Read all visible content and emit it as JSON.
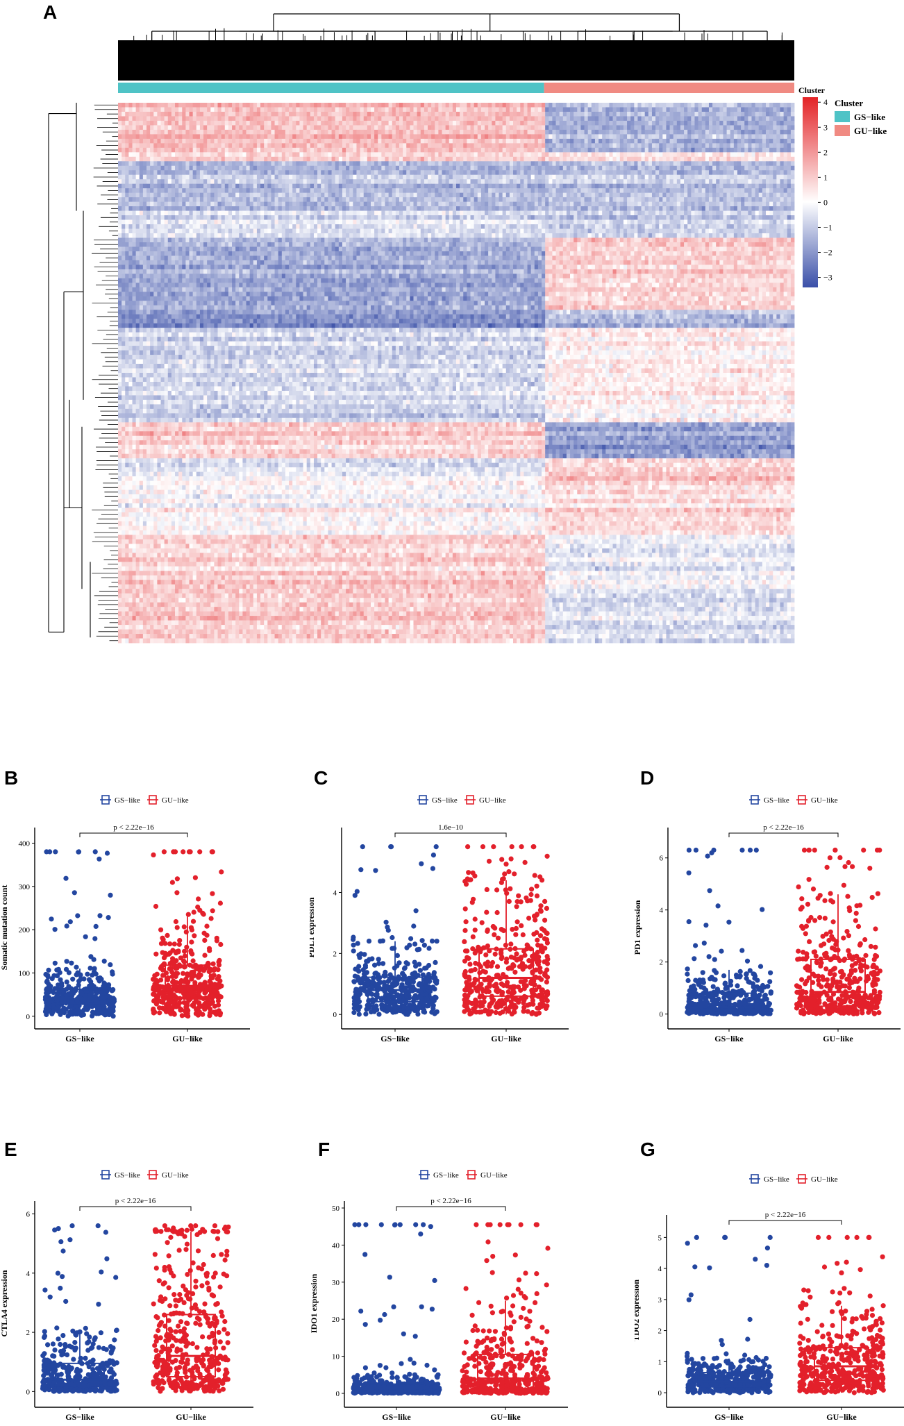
{
  "panels": {
    "a": "A",
    "b": "B",
    "c": "C",
    "d": "D",
    "e": "E",
    "f": "F",
    "g": "G"
  },
  "colors": {
    "gs": "#2346A0",
    "gu": "#E3202B",
    "heat_low": "#3A4FA8",
    "heat_mid": "#FFFFFF",
    "heat_high": "#E32326",
    "cluster_gs": "#4FC3C6",
    "cluster_gu": "#F08A82"
  },
  "chart_data": [
    {
      "type": "heatmap",
      "panel": "A",
      "annotation_label": "Cluster",
      "legend": {
        "title": "Cluster",
        "entries": [
          "GS−like",
          "GU−like"
        ],
        "colorbar_ticks": [
          "4",
          "3",
          "2",
          "1",
          "0",
          "−1",
          "−2",
          "−3"
        ],
        "colorbar_range": [
          -3.4,
          4.2
        ]
      },
      "groups": [
        {
          "name": "GS−like",
          "fraction": 0.63
        },
        {
          "name": "GU−like",
          "fraction": 0.37
        }
      ],
      "row_blocks": [
        {
          "start": 0.0,
          "end": 0.09,
          "gs": 1.3,
          "gu": -1.4
        },
        {
          "start": 0.09,
          "end": 0.11,
          "gs": 0.9,
          "gu": 0.6
        },
        {
          "start": 0.11,
          "end": 0.2,
          "gs": -1.3,
          "gu": -1.2
        },
        {
          "start": 0.2,
          "end": 0.25,
          "gs": -0.6,
          "gu": -0.9
        },
        {
          "start": 0.25,
          "end": 0.38,
          "gs": -1.6,
          "gu": 0.9
        },
        {
          "start": 0.38,
          "end": 0.42,
          "gs": -2.2,
          "gu": -1.4
        },
        {
          "start": 0.42,
          "end": 0.59,
          "gs": -0.8,
          "gu": 0.3
        },
        {
          "start": 0.59,
          "end": 0.66,
          "gs": 0.7,
          "gu": -2.0
        },
        {
          "start": 0.66,
          "end": 0.7,
          "gs": -0.5,
          "gu": 0.9
        },
        {
          "start": 0.7,
          "end": 0.8,
          "gs": 0.1,
          "gu": 0.7
        },
        {
          "start": 0.8,
          "end": 0.9,
          "gs": 0.9,
          "gu": -0.3
        },
        {
          "start": 0.9,
          "end": 1.0,
          "gs": 1.0,
          "gu": -0.6
        }
      ]
    },
    {
      "type": "boxplot",
      "panel": "B",
      "ylabel": "Somatic mutation count",
      "legend": [
        "GS−like",
        "GU−like"
      ],
      "categories": [
        "GS−like",
        "GU−like"
      ],
      "annotation": "p < 2.22e−16",
      "yticks": [
        "0",
        "100",
        "200",
        "300",
        "400"
      ],
      "ylim": [
        -10,
        420
      ],
      "boxes": [
        {
          "q1": 30,
          "median": 40,
          "q3": 62,
          "whisker_low": 0,
          "whisker_high": 110,
          "outlier_max": 380
        },
        {
          "q1": 42,
          "median": 70,
          "q3": 118,
          "whisker_low": 0,
          "whisker_high": 230,
          "outlier_max": 380
        }
      ]
    },
    {
      "type": "boxplot",
      "panel": "C",
      "ylabel": "PDL1 expression",
      "legend": [
        "GS−like",
        "GU−like"
      ],
      "categories": [
        "GS−like",
        "GU−like"
      ],
      "annotation": "1.6e−10",
      "yticks": [
        "0",
        "2",
        "4"
      ],
      "ylim": [
        -0.2,
        5.9
      ],
      "boxes": [
        {
          "q1": 0.42,
          "median": 0.8,
          "q3": 1.22,
          "whisker_low": 0,
          "whisker_high": 2.4,
          "outlier_max": 5.5
        },
        {
          "q1": 0.6,
          "median": 1.2,
          "q3": 2.15,
          "whisker_low": 0,
          "whisker_high": 4.4,
          "outlier_max": 5.5
        }
      ]
    },
    {
      "type": "boxplot",
      "panel": "D",
      "ylabel": "PD1 expression",
      "legend": [
        "GS−like",
        "GU−like"
      ],
      "categories": [
        "GS−like",
        "GU−like"
      ],
      "annotation": "p < 2.22e−16",
      "yticks": [
        "0",
        "2",
        "4",
        "6"
      ],
      "ylim": [
        -0.25,
        6.9
      ],
      "boxes": [
        {
          "q1": 0.18,
          "median": 0.38,
          "q3": 0.8,
          "whisker_low": 0,
          "whisker_high": 1.7,
          "outlier_max": 6.3
        },
        {
          "q1": 0.3,
          "median": 0.85,
          "q3": 2.1,
          "whisker_low": 0,
          "whisker_high": 4.6,
          "outlier_max": 6.3
        }
      ]
    },
    {
      "type": "boxplot",
      "panel": "E",
      "ylabel": "CTLA4 expression",
      "legend": [
        "GS−like",
        "GU−like"
      ],
      "categories": [
        "GS−like",
        "GU−like"
      ],
      "annotation": "p < 2.22e−16",
      "yticks": [
        "0",
        "2",
        "4",
        "6"
      ],
      "ylim": [
        -0.25,
        6.2
      ],
      "boxes": [
        {
          "q1": 0.2,
          "median": 0.4,
          "q3": 0.95,
          "whisker_low": 0,
          "whisker_high": 2.0,
          "outlier_max": 5.6
        },
        {
          "q1": 0.5,
          "median": 1.2,
          "q3": 2.6,
          "whisker_low": 0,
          "whisker_high": 5.4,
          "outlier_max": 5.6
        }
      ]
    },
    {
      "type": "boxplot",
      "panel": "F",
      "ylabel": "IDO1 expression",
      "legend": [
        "GS−like",
        "GU−like"
      ],
      "categories": [
        "GS−like",
        "GU−like"
      ],
      "annotation": "p < 2.22e−16",
      "yticks": [
        "0",
        "10",
        "20",
        "30",
        "40",
        "50"
      ],
      "ylim": [
        -1.5,
        50
      ],
      "boxes": [
        {
          "q1": 0.5,
          "median": 1.5,
          "q3": 2.5,
          "whisker_low": 0,
          "whisker_high": 5.0,
          "outlier_max": 45.5
        },
        {
          "q1": 1.0,
          "median": 4.0,
          "q3": 10.5,
          "whisker_low": 0,
          "whisker_high": 25,
          "outlier_max": 45.5
        }
      ]
    },
    {
      "type": "boxplot",
      "panel": "G",
      "ylabel": "TDO2 expression",
      "legend": [
        "GS−like",
        "GU−like"
      ],
      "categories": [
        "GS−like",
        "GU−like"
      ],
      "annotation": "p < 2.22e−16",
      "yticks": [
        "0",
        "1",
        "2",
        "3",
        "4",
        "5"
      ],
      "ylim": [
        -0.2,
        5.5
      ],
      "boxes": [
        {
          "q1": 0.2,
          "median": 0.35,
          "q3": 0.65,
          "whisker_low": 0,
          "whisker_high": 1.1,
          "outlier_max": 5.0
        },
        {
          "q1": 0.4,
          "median": 0.85,
          "q3": 1.45,
          "whisker_low": 0,
          "whisker_high": 2.8,
          "outlier_max": 5.0
        }
      ]
    }
  ]
}
